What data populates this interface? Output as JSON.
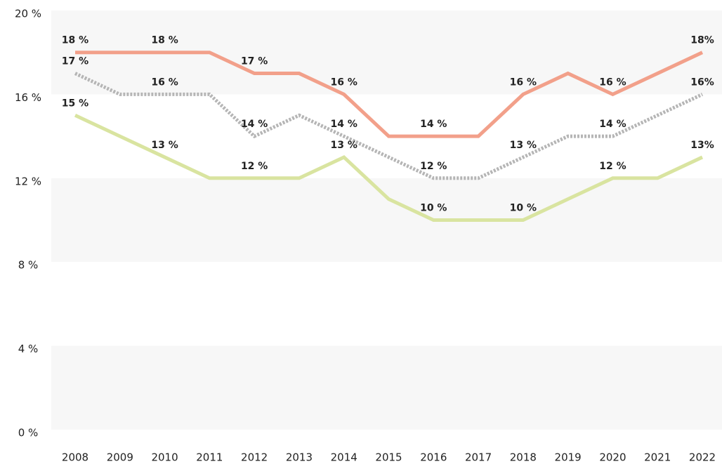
{
  "chart_data": {
    "type": "line",
    "x": [
      2008,
      2009,
      2010,
      2011,
      2012,
      2013,
      2014,
      2015,
      2016,
      2017,
      2018,
      2019,
      2020,
      2021,
      2022
    ],
    "series": [
      {
        "color": "#f2a08a",
        "dash": false,
        "values": [
          18,
          18,
          18,
          18,
          17,
          17,
          16,
          14,
          14,
          14,
          16,
          17,
          16,
          17,
          18
        ],
        "value_labels": [
          "18 %",
          null,
          "18 %",
          null,
          "17 %",
          null,
          "16 %",
          null,
          "14 %",
          null,
          "16 %",
          null,
          "16 %",
          null,
          "18%"
        ]
      },
      {
        "color": "#b5b5b5",
        "dash": true,
        "values": [
          17,
          16,
          16,
          16,
          14,
          15,
          14,
          13,
          12,
          12,
          13,
          14,
          14,
          15,
          16
        ],
        "value_labels": [
          "17 %",
          null,
          "16 %",
          null,
          "14 %",
          null,
          "14 %",
          null,
          "12 %",
          null,
          "13 %",
          null,
          "14 %",
          null,
          "16%"
        ]
      },
      {
        "color": "#d9e4a0",
        "dash": false,
        "values": [
          15,
          14,
          13,
          12,
          12,
          12,
          13,
          11,
          10,
          10,
          10,
          11,
          12,
          12,
          13
        ],
        "value_labels": [
          "15 %",
          null,
          "13 %",
          null,
          "12 %",
          null,
          "13 %",
          null,
          "10 %",
          null,
          "10 %",
          null,
          "12 %",
          null,
          "13%"
        ]
      }
    ],
    "xlim": [
      2008,
      2022
    ],
    "ylim": [
      0,
      20
    ],
    "yticks": [
      {
        "value": 0,
        "label": "0 %"
      },
      {
        "value": 4,
        "label": "4 %"
      },
      {
        "value": 8,
        "label": "8 %"
      },
      {
        "value": 12,
        "label": "12 %"
      },
      {
        "value": 16,
        "label": "16 %"
      },
      {
        "value": 20,
        "label": "20 %"
      }
    ],
    "grid": "bands"
  }
}
